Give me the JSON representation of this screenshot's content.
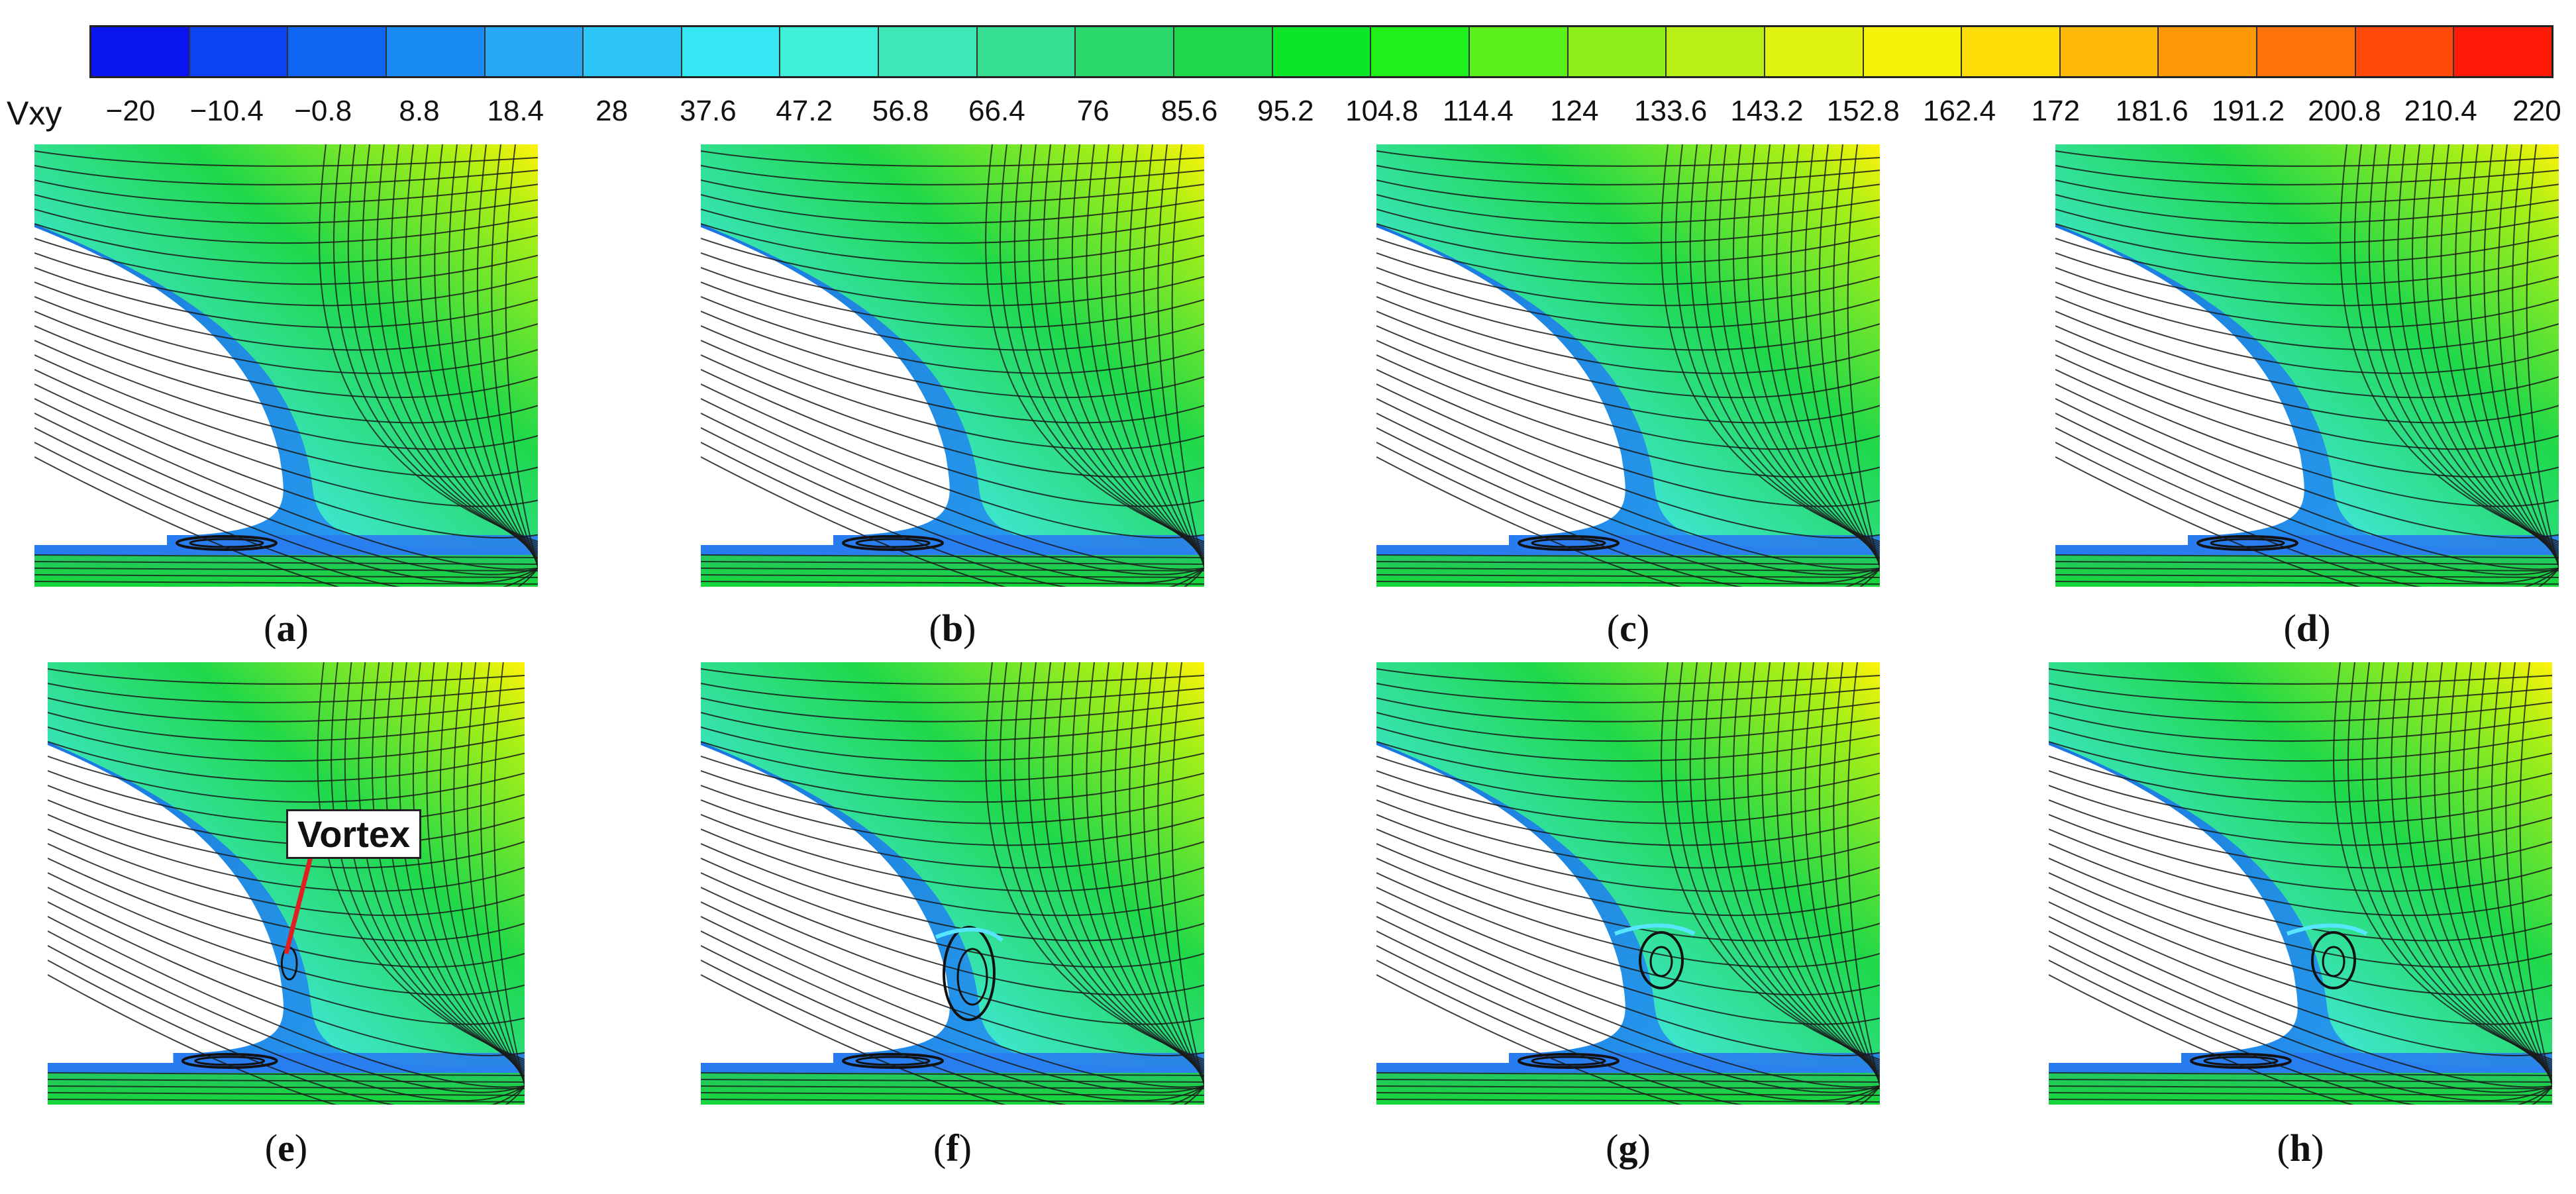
{
  "colorbar": {
    "variable": "Vxy",
    "ticks": [
      "-20",
      "-10.4",
      "-0.8",
      "8.8",
      "18.4",
      "28",
      "37.6",
      "47.2",
      "56.8",
      "66.4",
      "76",
      "85.6",
      "95.2",
      "104.8",
      "114.4",
      "124",
      "133.6",
      "143.2",
      "152.8",
      "162.4",
      "172",
      "181.6",
      "191.2",
      "200.8",
      "210.4",
      "220"
    ],
    "colors": [
      "#0a14ee",
      "#0b43f0",
      "#0f66f2",
      "#1a8af4",
      "#27a8f5",
      "#2dc5f6",
      "#36e6f2",
      "#3ef0d8",
      "#3de7b6",
      "#36de92",
      "#2bd86c",
      "#1fd84a",
      "#0be52a",
      "#1ff01a",
      "#5af01a",
      "#8df01a",
      "#b8f016",
      "#dff210",
      "#f5f20a",
      "#ffdd08",
      "#ffb908",
      "#ff9808",
      "#ff7308",
      "#ff4a08",
      "#ff1a08"
    ]
  },
  "panels": [
    {
      "caption": "a",
      "vortex": "none"
    },
    {
      "caption": "b",
      "vortex": "none"
    },
    {
      "caption": "c",
      "vortex": "none"
    },
    {
      "caption": "d",
      "vortex": "none"
    },
    {
      "caption": "e",
      "vortex": "small"
    },
    {
      "caption": "f",
      "vortex": "large"
    },
    {
      "caption": "g",
      "vortex": "medium"
    },
    {
      "caption": "h",
      "vortex": "medium"
    }
  ],
  "annotation": {
    "label": "Vortex",
    "color": "#e02020"
  }
}
